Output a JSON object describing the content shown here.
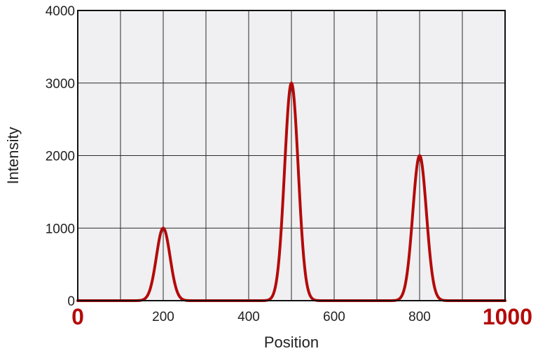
{
  "chart_data": {
    "type": "line",
    "title": "",
    "xlabel": "Position",
    "ylabel": "Intensity",
    "xlim": [
      0,
      1000
    ],
    "ylim": [
      0,
      4000
    ],
    "x_ticks": [
      200,
      400,
      600,
      800
    ],
    "y_ticks": [
      0,
      1000,
      2000,
      3000,
      4000
    ],
    "x_end_labels": [
      "0",
      "1000"
    ],
    "grid": true,
    "series": [
      {
        "peaks": [
          {
            "center": 200,
            "height": 1000,
            "sigma": 16
          },
          {
            "center": 500,
            "height": 3000,
            "sigma": 16
          },
          {
            "center": 800,
            "height": 2000,
            "sigma": 16
          }
        ]
      }
    ]
  },
  "colors": {
    "line": "#b40a0a",
    "plot_background": "#f0f0f2",
    "grid": "#2a2a2a",
    "frame": "#111111",
    "end_label": "#b40a0a"
  }
}
